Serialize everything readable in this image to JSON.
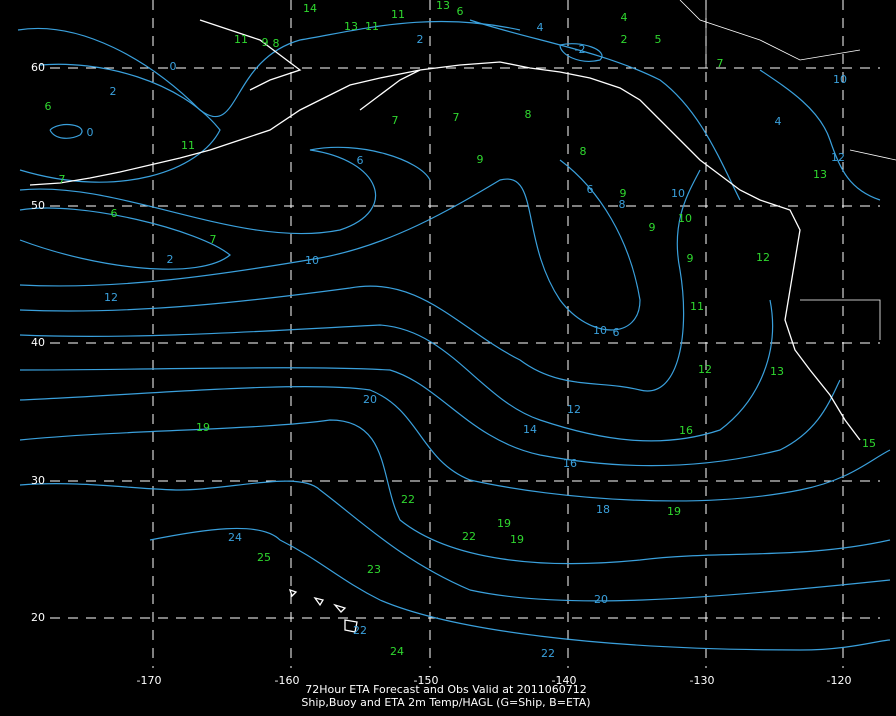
{
  "map": {
    "caption": [
      "72Hour ETA Forecast and Obs Valid at 2011060712",
      "Ship,Buoy and ETA 2m Temp/HAGL (G=Ship, B=ETA)"
    ],
    "lat_labels": [
      "60",
      "50",
      "40",
      "30",
      "20"
    ],
    "lon_labels": [
      "-170",
      "-160",
      "-150",
      "-140",
      "-130",
      "-120"
    ],
    "contour_labels": [
      "0",
      "2",
      "0",
      "2",
      "6",
      "10",
      "12",
      "20",
      "14",
      "12",
      "16",
      "18",
      "20",
      "22",
      "24",
      "22",
      "10",
      "6",
      "8",
      "6",
      "10",
      "-2",
      "2",
      "4",
      "10",
      "12",
      "4"
    ],
    "ship_obs": [
      "19",
      "22",
      "22",
      "19",
      "19",
      "23",
      "25",
      "24",
      "19",
      "16",
      "12",
      "11",
      "9",
      "10",
      "9",
      "9",
      "9",
      "8",
      "8",
      "7",
      "7",
      "11",
      "6",
      "7",
      "6",
      "7",
      "11",
      "9",
      "8",
      "14",
      "13",
      "11",
      "11",
      "13",
      "6",
      "4",
      "2",
      "5",
      "7",
      "13",
      "12",
      "13",
      "15"
    ]
  }
}
